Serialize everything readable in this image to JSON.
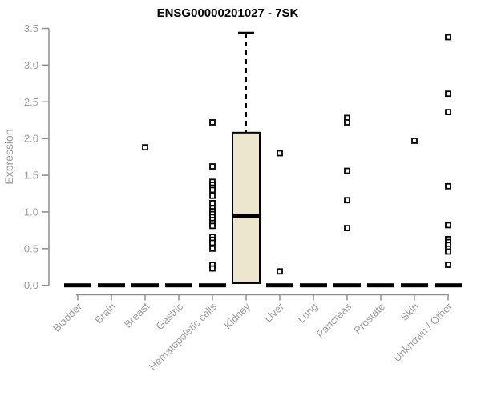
{
  "chart_data": {
    "type": "boxplot",
    "title": "ENSG00000201027 - 7SK",
    "ylabel": "Expression",
    "xlabel": "",
    "ylim": [
      0,
      3.5
    ],
    "yticks": [
      0.0,
      0.5,
      1.0,
      1.5,
      2.0,
      2.5,
      3.0,
      3.5
    ],
    "grid": false,
    "legend": "none",
    "categories": [
      "Bladder",
      "Brain",
      "Breast",
      "Gastric",
      "Hematopoietic cells",
      "Kidney",
      "Liver",
      "Lung",
      "Pancreas",
      "Prostate",
      "Skin",
      "Unknown / Other"
    ],
    "series": [
      {
        "category": "Bladder",
        "box": {
          "whislo": 0,
          "q1": 0,
          "med": 0,
          "q3": 0,
          "whishi": 0
        },
        "outliers": []
      },
      {
        "category": "Brain",
        "box": {
          "whislo": 0,
          "q1": 0,
          "med": 0,
          "q3": 0,
          "whishi": 0
        },
        "outliers": []
      },
      {
        "category": "Breast",
        "box": {
          "whislo": 0,
          "q1": 0,
          "med": 0,
          "q3": 0,
          "whishi": 0
        },
        "outliers": [
          1.88
        ]
      },
      {
        "category": "Gastric",
        "box": {
          "whislo": 0,
          "q1": 0,
          "med": 0,
          "q3": 0,
          "whishi": 0
        },
        "outliers": []
      },
      {
        "category": "Hematopoietic cells",
        "box": {
          "whislo": 0,
          "q1": 0,
          "med": 0,
          "q3": 0,
          "whishi": 0
        },
        "outliers": [
          2.22,
          1.62,
          1.41,
          1.37,
          1.33,
          1.3,
          1.22,
          1.12,
          1.05,
          1.01,
          0.97,
          0.93,
          0.89,
          0.85,
          0.81,
          0.66,
          0.62,
          0.58,
          0.5,
          0.28,
          0.23
        ]
      },
      {
        "category": "Kidney",
        "box": {
          "whislo": 0.03,
          "q1": 0.03,
          "med": 0.94,
          "q3": 2.08,
          "whishi": 3.44
        },
        "outliers": []
      },
      {
        "category": "Liver",
        "box": {
          "whislo": 0,
          "q1": 0,
          "med": 0,
          "q3": 0,
          "whishi": 0
        },
        "outliers": [
          1.8,
          0.19
        ]
      },
      {
        "category": "Lung",
        "box": {
          "whislo": 0,
          "q1": 0,
          "med": 0,
          "q3": 0,
          "whishi": 0
        },
        "outliers": []
      },
      {
        "category": "Pancreas",
        "box": {
          "whislo": 0,
          "q1": 0,
          "med": 0,
          "q3": 0,
          "whishi": 0
        },
        "outliers": [
          2.28,
          2.22,
          1.56,
          1.16,
          0.78
        ]
      },
      {
        "category": "Prostate",
        "box": {
          "whislo": 0,
          "q1": 0,
          "med": 0,
          "q3": 0,
          "whishi": 0
        },
        "outliers": []
      },
      {
        "category": "Skin",
        "box": {
          "whislo": 0,
          "q1": 0,
          "med": 0,
          "q3": 0,
          "whishi": 0
        },
        "outliers": [
          1.97
        ]
      },
      {
        "category": "Unknown / Other",
        "box": {
          "whislo": 0,
          "q1": 0,
          "med": 0,
          "q3": 0,
          "whishi": 0
        },
        "outliers": [
          3.38,
          2.61,
          2.36,
          1.35,
          0.82,
          0.63,
          0.59,
          0.55,
          0.5,
          0.46,
          0.28
        ]
      }
    ],
    "colors": {
      "box_fill": "#ece6cf",
      "box_stroke": "#000000",
      "median": "#000000",
      "whisker": "#000000",
      "outlier_stroke": "#000000",
      "outlier_fill": "#ffffff",
      "axis": "#8e8e8e",
      "tick_label": "#9c9c9c",
      "title": "#000000",
      "background": "#ffffff"
    }
  }
}
